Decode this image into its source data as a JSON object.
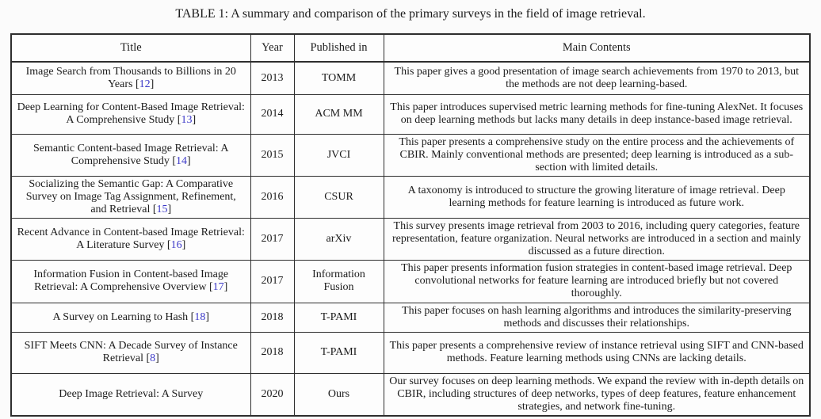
{
  "caption": "TABLE 1: A summary and comparison of the primary surveys in the field of image retrieval.",
  "colors": {
    "citation": "#3b38c8",
    "text": "#1c1c1c",
    "border": "#2e2e2e"
  },
  "table": {
    "headers": [
      "Title",
      "Year",
      "Published in",
      "Main Contents"
    ],
    "rows": [
      {
        "title": "Image Search from Thousands to Billions in 20 Years",
        "citation": "12",
        "year": "2013",
        "published_in": "TOMM",
        "main_contents": "This paper gives a good presentation of image search achievements from 1970 to 2013, but the methods are not deep learning-based."
      },
      {
        "title": "Deep Learning for Content-Based Image Retrieval: A Comprehensive Study",
        "citation": "13",
        "year": "2014",
        "published_in": "ACM MM",
        "main_contents": "This paper introduces supervised metric learning methods for fine-tuning AlexNet. It focuses on deep learning methods but lacks many details in deep instance-based image retrieval."
      },
      {
        "title": "Semantic Content-based Image Retrieval: A Comprehensive Study",
        "citation": "14",
        "year": "2015",
        "published_in": "JVCI",
        "main_contents": "This paper presents a comprehensive study on the entire process and the achievements of CBIR. Mainly conventional methods are presented; deep learning is introduced as a sub-section with limited details."
      },
      {
        "title": "Socializing the Semantic Gap: A Comparative Survey on Image Tag Assignment, Refinement, and Retrieval",
        "citation": "15",
        "year": "2016",
        "published_in": "CSUR",
        "main_contents": "A taxonomy is introduced to structure the growing literature of image retrieval. Deep learning methods for feature learning is introduced as future work."
      },
      {
        "title": "Recent Advance in Content-based Image Retrieval: A Literature Survey",
        "citation": "16",
        "year": "2017",
        "published_in": "arXiv",
        "main_contents": "This survey presents image retrieval from 2003 to 2016, including query categories, feature representation, feature organization. Neural networks are introduced in a section and mainly discussed as a future direction."
      },
      {
        "title": "Information Fusion in Content-based Image Retrieval: A Comprehensive Overview",
        "citation": "17",
        "year": "2017",
        "published_in": "Information Fusion",
        "main_contents": "This paper presents information fusion strategies in content-based image retrieval. Deep convolutional networks for feature learning are introduced briefly but not covered thoroughly."
      },
      {
        "title": "A Survey on Learning to Hash",
        "citation": "18",
        "year": "2018",
        "published_in": "T-PAMI",
        "main_contents": "This paper focuses on hash learning algorithms and introduces the similarity-preserving methods and discusses their relationships."
      },
      {
        "title": "SIFT Meets CNN: A Decade Survey of Instance Retrieval",
        "citation": "8",
        "year": "2018",
        "published_in": "T-PAMI",
        "main_contents": "This paper presents a comprehensive review of instance retrieval using SIFT and CNN-based methods. Feature learning methods using CNNs are lacking details."
      },
      {
        "title": "Deep Image Retrieval: A Survey",
        "citation": null,
        "year": "2020",
        "published_in": "Ours",
        "main_contents": "Our survey focuses on deep learning methods. We expand the review with in-depth details on CBIR, including structures of deep networks, types of deep features, feature enhancement strategies, and network fine-tuning."
      }
    ]
  }
}
